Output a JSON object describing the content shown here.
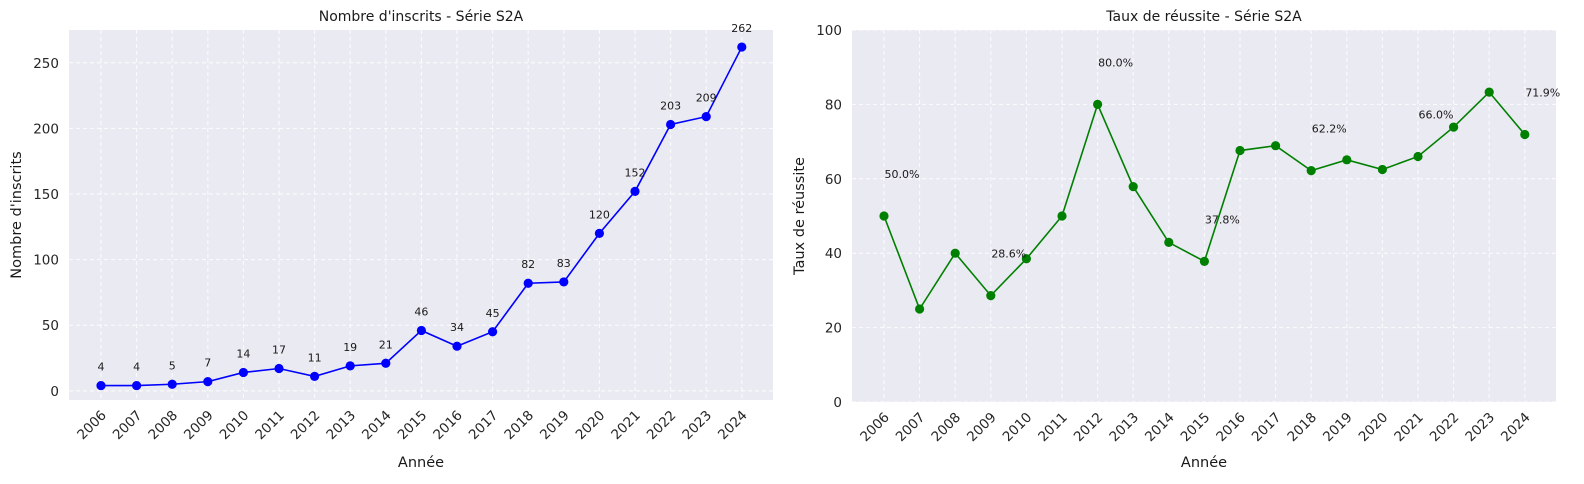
{
  "chart_data": [
    {
      "type": "line",
      "title": "Nombre d'inscrits - Série S2A",
      "xlabel": "Année",
      "ylabel": "Nombre d'inscrits",
      "x": [
        "2006",
        "2007",
        "2008",
        "2009",
        "2010",
        "2011",
        "2012",
        "2013",
        "2014",
        "2015",
        "2016",
        "2017",
        "2018",
        "2019",
        "2020",
        "2021",
        "2022",
        "2023",
        "2024"
      ],
      "values": [
        4,
        4,
        5,
        7,
        14,
        17,
        11,
        19,
        21,
        46,
        34,
        45,
        82,
        83,
        120,
        152,
        203,
        209,
        262
      ],
      "data_labels": [
        "4",
        "4",
        "5",
        "7",
        "14",
        "17",
        "11",
        "19",
        "21",
        "46",
        "34",
        "45",
        "82",
        "83",
        "120",
        "152",
        "203",
        "209",
        "262"
      ],
      "yticks": [
        0,
        50,
        100,
        150,
        200,
        250
      ],
      "ylim": [
        -7,
        275
      ],
      "grid": true,
      "color": "#0000ff"
    },
    {
      "type": "line",
      "title": "Taux de réussite - Série S2A",
      "xlabel": "Année",
      "ylabel": "Taux de réussite",
      "x": [
        "2006",
        "2007",
        "2008",
        "2009",
        "2010",
        "2011",
        "2012",
        "2013",
        "2014",
        "2015",
        "2016",
        "2017",
        "2018",
        "2019",
        "2020",
        "2021",
        "2022",
        "2023",
        "2024"
      ],
      "values": [
        50.0,
        25.0,
        40.0,
        28.6,
        38.5,
        50.0,
        80.0,
        57.9,
        42.9,
        37.8,
        67.6,
        68.9,
        62.2,
        65.1,
        62.5,
        66.0,
        73.9,
        83.3,
        71.9
      ],
      "annotations": [
        {
          "index": 0,
          "text": "50.0%"
        },
        {
          "index": 3,
          "text": "28.6%"
        },
        {
          "index": 6,
          "text": "80.0%"
        },
        {
          "index": 9,
          "text": "37.8%"
        },
        {
          "index": 12,
          "text": "62.2%"
        },
        {
          "index": 15,
          "text": "66.0%"
        },
        {
          "index": 18,
          "text": "71.9%"
        }
      ],
      "yticks": [
        0,
        20,
        40,
        60,
        80,
        100
      ],
      "ylim": [
        0,
        100
      ],
      "grid": true,
      "color": "#008000"
    }
  ]
}
